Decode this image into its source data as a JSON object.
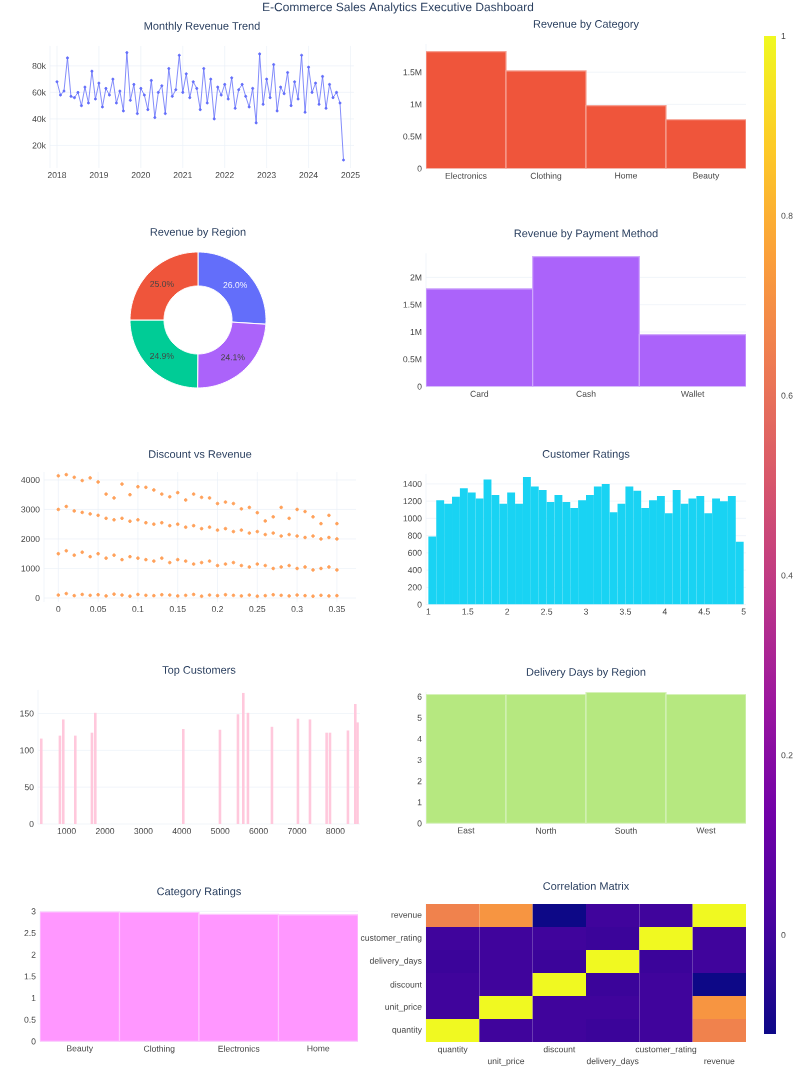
{
  "chart_data": [
    {
      "type": "other",
      "title": "E-Commerce Sales Analytics Executive Dashboard"
    },
    {
      "type": "line",
      "title": "Monthly Revenue Trend",
      "color": "#636efa",
      "marker": "circle",
      "grid": true,
      "x": [
        "2018-01",
        "2018-02",
        "2018-03",
        "2018-04",
        "2018-05",
        "2018-06",
        "2018-07",
        "2018-08",
        "2018-09",
        "2018-10",
        "2018-11",
        "2018-12",
        "2019-01",
        "2019-02",
        "2019-03",
        "2019-04",
        "2019-05",
        "2019-06",
        "2019-07",
        "2019-08",
        "2019-09",
        "2019-10",
        "2019-11",
        "2019-12",
        "2020-01",
        "2020-02",
        "2020-03",
        "2020-04",
        "2020-05",
        "2020-06",
        "2020-07",
        "2020-08",
        "2020-09",
        "2020-10",
        "2020-11",
        "2020-12",
        "2021-01",
        "2021-02",
        "2021-03",
        "2021-04",
        "2021-05",
        "2021-06",
        "2021-07",
        "2021-08",
        "2021-09",
        "2021-10",
        "2021-11",
        "2021-12",
        "2022-01",
        "2022-02",
        "2022-03",
        "2022-04",
        "2022-05",
        "2022-06",
        "2022-07",
        "2022-08",
        "2022-09",
        "2022-10",
        "2022-11",
        "2022-12",
        "2023-01",
        "2023-02",
        "2023-03",
        "2023-04",
        "2023-05",
        "2023-06",
        "2023-07",
        "2023-08",
        "2023-09",
        "2023-10",
        "2023-11",
        "2023-12",
        "2024-01",
        "2024-02",
        "2024-03",
        "2024-04",
        "2024-05",
        "2024-06",
        "2024-07",
        "2024-08",
        "2024-09",
        "2024-10",
        "2024-11"
      ],
      "values": [
        68000,
        58000,
        61000,
        86000,
        57000,
        56000,
        60000,
        50000,
        64000,
        52000,
        76000,
        55000,
        67000,
        49000,
        63000,
        58000,
        70000,
        52000,
        61000,
        46000,
        90000,
        54000,
        66000,
        44000,
        63000,
        58000,
        47000,
        69000,
        41000,
        60000,
        65000,
        44000,
        78000,
        57000,
        62000,
        88000,
        60000,
        74000,
        56000,
        68000,
        63000,
        47000,
        78000,
        52000,
        70000,
        40000,
        64000,
        58000,
        66000,
        55000,
        71000,
        48000,
        62000,
        66000,
        57000,
        49000,
        63000,
        37000,
        89000,
        51000,
        70000,
        56000,
        81000,
        46000,
        64000,
        59000,
        75000,
        50000,
        68000,
        55000,
        88000,
        45000,
        79000,
        60000,
        67000,
        51000,
        72000,
        48000,
        66000,
        56000,
        60000,
        52000,
        9000
      ],
      "xlim": [
        "2017-11",
        "2025-02"
      ],
      "xticks": [
        "2018",
        "2019",
        "2020",
        "2021",
        "2022",
        "2023",
        "2024",
        "2025"
      ],
      "ylim": [
        3000,
        95000
      ],
      "yticks": [
        {
          "value": 20000,
          "label": "20k"
        },
        {
          "value": 40000,
          "label": "40k"
        },
        {
          "value": 60000,
          "label": "60k"
        },
        {
          "value": 80000,
          "label": "80k"
        }
      ]
    },
    {
      "type": "bar",
      "title": "Revenue by Category",
      "color": "#ef553b",
      "grid": "y",
      "categories": [
        "Electronics",
        "Clothing",
        "Home",
        "Beauty"
      ],
      "values": [
        1820000,
        1520000,
        980000,
        760000
      ],
      "ylim": [
        0,
        1940000
      ],
      "yticks": [
        0,
        {
          "value": 500000,
          "label": "0.5M"
        },
        {
          "value": 1000000,
          "label": "1M"
        },
        {
          "value": 1500000,
          "label": "1.5M"
        }
      ]
    },
    {
      "type": "donut",
      "title": "Revenue by Region",
      "categories": [
        null,
        null,
        null,
        null
      ],
      "values": [
        26.0,
        24.1,
        24.9,
        25.0
      ],
      "colors": [
        "#636efa",
        "#ab63fa",
        "#00cc96",
        "#ef553b"
      ],
      "value_labels": [
        "26.0%",
        "24.1%",
        "24.9%",
        "25.0%"
      ]
    },
    {
      "type": "bar",
      "title": "Revenue by Payment Method",
      "color": "#ab63fa",
      "grid": "y",
      "categories": [
        "Card",
        "Cash",
        "Wallet"
      ],
      "values": [
        1790000,
        2380000,
        950000
      ],
      "ylim": [
        0,
        2440000
      ],
      "yticks": [
        0,
        {
          "value": 500000,
          "label": "0.5M"
        },
        {
          "value": 1000000,
          "label": "1M"
        },
        {
          "value": 1500000,
          "label": "1.5M"
        },
        {
          "value": 2000000,
          "label": "2M"
        }
      ]
    },
    {
      "type": "scatter",
      "title": "Discount vs Revenue",
      "color": "#ffa15a",
      "marker": "circle",
      "grid": true,
      "x": [
        0,
        0.01,
        0.02,
        0.03,
        0.04,
        0.05,
        0.06,
        0.07,
        0.08,
        0.09,
        0.1,
        0.11,
        0.12,
        0.13,
        0.14,
        0.15,
        0.16,
        0.17,
        0.18,
        0.19,
        0.2,
        0.21,
        0.22,
        0.23,
        0.24,
        0.25,
        0.26,
        0.27,
        0.28,
        0.29,
        0.3,
        0.31,
        0.32,
        0.33,
        0.34,
        0.35,
        0,
        0.01,
        0.02,
        0.03,
        0.04,
        0.05,
        0.06,
        0.07,
        0.08,
        0.09,
        0.1,
        0.11,
        0.12,
        0.13,
        0.14,
        0.15,
        0.16,
        0.17,
        0.18,
        0.19,
        0.2,
        0.21,
        0.22,
        0.23,
        0.24,
        0.25,
        0.26,
        0.27,
        0.28,
        0.29,
        0.3,
        0.31,
        0.32,
        0.33,
        0.34,
        0.35,
        0,
        0.01,
        0.02,
        0.03,
        0.04,
        0.05,
        0.06,
        0.07,
        0.08,
        0.09,
        0.1,
        0.11,
        0.12,
        0.13,
        0.14,
        0.15,
        0.16,
        0.17,
        0.18,
        0.19,
        0.2,
        0.21,
        0.22,
        0.23,
        0.24,
        0.25,
        0.26,
        0.27,
        0.28,
        0.29,
        0.3,
        0.31,
        0.32,
        0.33,
        0.34,
        0.35,
        0,
        0.01,
        0.02,
        0.03,
        0.04,
        0.05,
        0.06,
        0.07,
        0.08,
        0.09,
        0.1,
        0.11,
        0.12,
        0.13,
        0.14,
        0.15,
        0.16,
        0.17,
        0.18,
        0.19,
        0.2,
        0.21,
        0.22,
        0.23,
        0.24,
        0.25,
        0.26,
        0.27,
        0.28,
        0.29,
        0.3,
        0.31,
        0.32,
        0.33,
        0.34,
        0.35
      ],
      "values": [
        4140,
        4180,
        4090,
        3980,
        4070,
        3930,
        3520,
        3390,
        3860,
        3500,
        3770,
        3750,
        3660,
        3520,
        3430,
        3570,
        3320,
        3520,
        3410,
        3390,
        3200,
        3250,
        3200,
        3020,
        3070,
        2890,
        2610,
        2750,
        3070,
        2700,
        3000,
        2930,
        2750,
        2520,
        2800,
        2520,
        3000,
        3100,
        2950,
        2900,
        2850,
        2800,
        2700,
        2650,
        2700,
        2600,
        2650,
        2550,
        2500,
        2550,
        2450,
        2500,
        2400,
        2450,
        2350,
        2400,
        2300,
        2350,
        2250,
        2300,
        2200,
        2250,
        2150,
        2200,
        2100,
        2150,
        2100,
        2050,
        2100,
        2000,
        2050,
        2000,
        1500,
        1600,
        1450,
        1550,
        1400,
        1500,
        1350,
        1450,
        1300,
        1400,
        1350,
        1300,
        1250,
        1350,
        1200,
        1300,
        1250,
        1150,
        1200,
        1250,
        1100,
        1150,
        1200,
        1100,
        1050,
        1150,
        1100,
        1000,
        1050,
        1100,
        1000,
        1050,
        950,
        1000,
        1050,
        950,
        100,
        150,
        80,
        120,
        90,
        110,
        70,
        130,
        100,
        60,
        120,
        90,
        80,
        110,
        100,
        70,
        90,
        120,
        60,
        100,
        80,
        110,
        90,
        70,
        100,
        60,
        80,
        110,
        90,
        70,
        100,
        80,
        60,
        90,
        70,
        80
      ],
      "xlim": [
        -0.018,
        0.374
      ],
      "xticks": [
        0,
        0.05,
        0.1,
        0.15,
        0.2,
        0.25,
        0.3,
        0.35
      ],
      "ylim": [
        -135,
        4270
      ],
      "yticks": [
        0,
        1000,
        2000,
        3000,
        4000
      ]
    },
    {
      "type": "histogram",
      "title": "Customer Ratings",
      "color": "#19d3f3",
      "grid": "y",
      "bins": [
        1,
        1.1,
        1.2,
        1.3,
        1.4,
        1.5,
        1.6,
        1.7,
        1.8,
        1.9,
        2,
        2.1,
        2.2,
        2.3,
        2.4,
        2.5,
        2.6,
        2.7,
        2.8,
        2.9,
        3,
        3.1,
        3.2,
        3.3,
        3.4,
        3.5,
        3.6,
        3.7,
        3.8,
        3.9,
        4,
        4.1,
        4.2,
        4.3,
        4.4,
        4.5,
        4.6,
        4.7,
        4.8,
        4.9,
        5
      ],
      "values": [
        790,
        1210,
        1170,
        1250,
        1350,
        1300,
        1230,
        1450,
        1270,
        1170,
        1300,
        1170,
        1480,
        1370,
        1330,
        1190,
        1270,
        1190,
        1120,
        1210,
        1270,
        1370,
        1400,
        1070,
        1170,
        1370,
        1320,
        1120,
        1210,
        1260,
        1060,
        1330,
        1170,
        1230,
        1260,
        1060,
        1230,
        1200,
        1260,
        730
      ],
      "xlim": [
        0.97,
        5.03
      ],
      "xticks": [
        1,
        1.5,
        2,
        2.5,
        3,
        3.5,
        4,
        4.5,
        5
      ],
      "ylim": [
        0,
        1515
      ],
      "yticks": [
        0,
        200,
        400,
        600,
        800,
        1000,
        1200,
        1400
      ]
    },
    {
      "type": "bar",
      "title": "Top Customers",
      "color": "#ffc8dc",
      "grid": "y",
      "x": [
        340,
        826,
        913,
        1226,
        1660,
        1747,
        4038,
        4993,
        5462,
        5601,
        5722,
        6347,
        7024,
        7337,
        7771,
        7858,
        8326,
        8517,
        8575
      ],
      "values": [
        116,
        120,
        142,
        120,
        124,
        151,
        129,
        128,
        149,
        178,
        151,
        132,
        143,
        142,
        124,
        124,
        127,
        163,
        138
      ],
      "xlim": [
        255,
        8640
      ],
      "xticks": [
        1000,
        2000,
        3000,
        4000,
        5000,
        6000,
        7000,
        8000
      ],
      "ylim": [
        0,
        182
      ],
      "yticks": [
        0,
        50,
        100,
        150
      ]
    },
    {
      "type": "bar",
      "title": "Delivery Days by Region",
      "color": "#b6e880",
      "grid": "y",
      "categories": [
        "East",
        "North",
        "South",
        "West"
      ],
      "values": [
        6.1,
        6.1,
        6.2,
        6.1
      ],
      "ylim": [
        0,
        6.22
      ],
      "yticks": [
        0,
        1,
        2,
        3,
        4,
        5,
        6
      ]
    },
    {
      "type": "bar",
      "title": "Category Ratings",
      "color": "#ff97ff",
      "grid": "y",
      "categories": [
        "Beauty",
        "Clothing",
        "Electronics",
        "Home"
      ],
      "values": [
        2.99,
        2.98,
        2.93,
        2.92
      ],
      "ylim": [
        0,
        3
      ],
      "yticks": [
        0,
        0.5,
        1,
        1.5,
        2,
        2.5,
        3
      ]
    },
    {
      "type": "heatmap",
      "title": "Correlation Matrix",
      "categories": [
        "quantity",
        "unit_price",
        "discount",
        "delivery_days",
        "customer_rating",
        "revenue"
      ],
      "y_categories": [
        "revenue",
        "customer_rating",
        "delivery_days",
        "discount",
        "unit_price",
        "quantity"
      ],
      "cells": [
        [
          0.66,
          0.72,
          -0.11,
          0.0,
          0.0,
          1
        ],
        [
          0.0,
          0.0,
          0.0,
          -0.01,
          1,
          0.0
        ],
        [
          -0.01,
          0.0,
          -0.01,
          1,
          -0.01,
          0.0
        ],
        [
          0.0,
          0.0,
          1,
          -0.01,
          0.0,
          -0.11
        ],
        [
          0.0,
          1,
          0.0,
          0.0,
          0.0,
          0.72
        ],
        [
          1,
          0.0,
          0.0,
          -0.01,
          0.0,
          0.66
        ]
      ],
      "clim": [
        -0.11,
        1
      ],
      "cticks": [
        0,
        0.2,
        0.4,
        0.6,
        0.8,
        1
      ]
    }
  ]
}
